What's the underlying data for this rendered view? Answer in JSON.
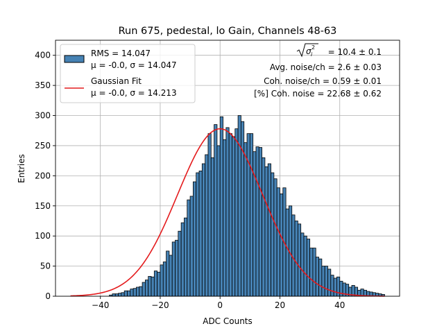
{
  "colors": {
    "bar_fill": "#4682b4",
    "bar_edge": "#000000",
    "fit_line": "#e41a1c",
    "grid": "#b0b0b0"
  },
  "chart_data": {
    "type": "bar",
    "title": "Run 675, pedestal, lo Gain, Channels 48-63",
    "xlabel": "ADC Counts",
    "ylabel": "Entries",
    "xlim": [
      -55,
      60
    ],
    "ylim": [
      0,
      425
    ],
    "xticks": [
      -40,
      -20,
      0,
      20,
      40
    ],
    "xtick_labels": [
      "−40",
      "−20",
      "0",
      "20",
      "40"
    ],
    "yticks": [
      0,
      50,
      100,
      150,
      200,
      250,
      300,
      350,
      400
    ],
    "ytick_labels": [
      "0",
      "50",
      "100",
      "150",
      "200",
      "250",
      "300",
      "350",
      "400"
    ],
    "grid": true,
    "bin_start": -37,
    "bin_width": 1,
    "values": [
      2,
      4,
      4,
      5,
      6,
      9,
      9,
      12,
      13,
      15,
      16,
      23,
      27,
      33,
      32,
      42,
      40,
      52,
      57,
      75,
      68,
      90,
      93,
      108,
      122,
      130,
      160,
      166,
      190,
      205,
      208,
      220,
      235,
      270,
      230,
      285,
      250,
      298,
      260,
      280,
      270,
      265,
      278,
      300,
      290,
      255,
      270,
      270,
      240,
      248,
      247,
      230,
      215,
      220,
      205,
      195,
      180,
      170,
      180,
      145,
      150,
      135,
      125,
      120,
      105,
      100,
      95,
      80,
      80,
      65,
      62,
      50,
      50,
      45,
      35,
      30,
      32,
      25,
      22,
      20,
      15,
      18,
      15,
      10,
      12,
      10,
      8,
      7,
      6,
      5,
      4,
      3
    ],
    "fit": {
      "type": "gaussian",
      "amplitude": 278,
      "mu": 0.0,
      "sigma": 14.213,
      "x_range": [
        -50,
        55
      ]
    },
    "legend": {
      "location": "top-left",
      "entries": [
        {
          "kind": "patch",
          "line1": "RMS = 14.047",
          "line2": "μ = -0.0, σ = 14.047"
        },
        {
          "kind": "line",
          "line1": "Gaussian Fit",
          "line2": "μ = -0.0, σ = 14.213"
        }
      ]
    },
    "annotations": {
      "sqrt_sigma_value": " = 10.4 ± 0.1",
      "sqrt_sigma_symbol": "σ",
      "sqrt_sigma_sub": "i",
      "sqrt_sigma_sup": "2",
      "lines": [
        "Avg. noise/ch = 2.6 ± 0.03",
        "Coh. noise/ch = 0.59 ± 0.01",
        "[%] Coh. noise = 22.68 ± 0.62"
      ]
    }
  }
}
